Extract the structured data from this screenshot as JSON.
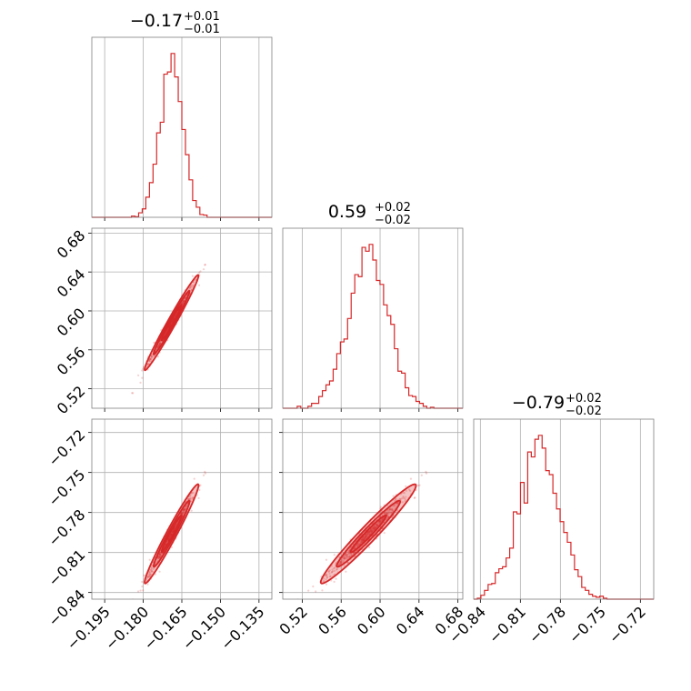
{
  "chart_data": {
    "type": "corner",
    "color": "#d62728",
    "parameters": [
      {
        "median": "−0.17",
        "plus": "+0.01",
        "minus": "−0.01",
        "range": [
          -0.2,
          -0.13
        ],
        "mean": -0.169,
        "sd": 0.0045,
        "ticks": [
          -0.195,
          -0.18,
          -0.165,
          -0.15,
          -0.135
        ],
        "tick_labels": [
          "−0.195",
          "−0.180",
          "−0.165",
          "−0.150",
          "−0.135"
        ]
      },
      {
        "median": "0.59",
        "plus": "+0.02",
        "minus": "−0.02",
        "range": [
          0.5,
          0.685
        ],
        "mean": 0.588,
        "sd": 0.021,
        "ticks": [
          0.52,
          0.56,
          0.6,
          0.64,
          0.68
        ],
        "tick_labels": [
          "0.52",
          "0.56",
          "0.60",
          "0.64",
          "0.68"
        ]
      },
      {
        "median": "−0.79",
        "plus": "+0.02",
        "minus": "−0.02",
        "range": [
          -0.845,
          -0.71
        ],
        "mean": -0.796,
        "sd": 0.016,
        "ticks": [
          -0.84,
          -0.81,
          -0.78,
          -0.75,
          -0.72
        ],
        "tick_labels": [
          "−0.84",
          "−0.81",
          "−0.78",
          "−0.75",
          "−0.72"
        ]
      }
    ],
    "grid": true
  }
}
